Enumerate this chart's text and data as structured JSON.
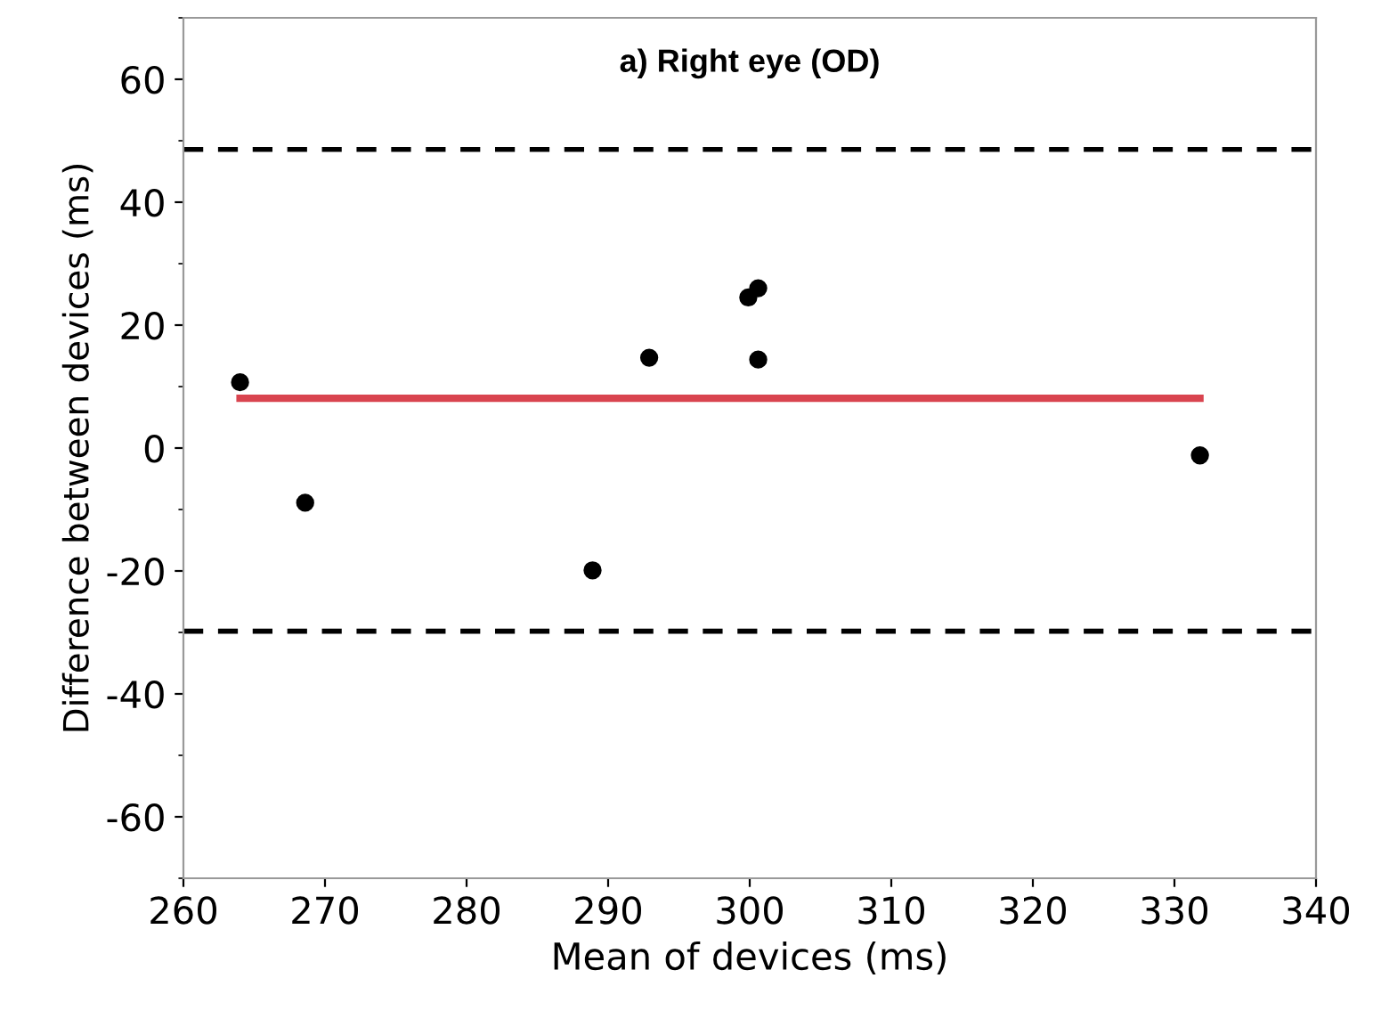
{
  "chart_data": {
    "type": "scatter",
    "title": "a) Right eye (OD)",
    "xlabel": "Mean of devices (ms)",
    "ylabel": "Difference between devices (ms)",
    "xlim": [
      260,
      340
    ],
    "xticks": [
      260,
      270,
      280,
      290,
      300,
      310,
      320,
      330,
      340
    ],
    "ylim": [
      -70,
      70
    ],
    "yticks": [
      -60,
      -40,
      -20,
      0,
      20,
      40,
      60
    ],
    "grid": false,
    "legend": false,
    "series": [
      {
        "marker": "circle",
        "color": "#000000",
        "x": [
          264.0,
          268.6,
          288.9,
          292.9,
          299.9,
          300.6,
          300.6,
          331.8
        ],
        "values": [
          10.7,
          -8.9,
          -19.9,
          14.7,
          24.5,
          26.0,
          14.4,
          -1.2
        ]
      },
      {
        "type": "line",
        "color": "#d9444f",
        "x": [
          264.0,
          331.8
        ],
        "values": [
          8.1,
          8.1
        ],
        "line_style": "solid"
      }
    ],
    "ref_lines": [
      {
        "axis": "y",
        "value": 48.6,
        "label": null,
        "color": "#000000",
        "line_style": "dashed"
      },
      {
        "axis": "y",
        "value": -29.8,
        "label": null,
        "color": "#000000",
        "line_style": "dashed"
      }
    ]
  }
}
